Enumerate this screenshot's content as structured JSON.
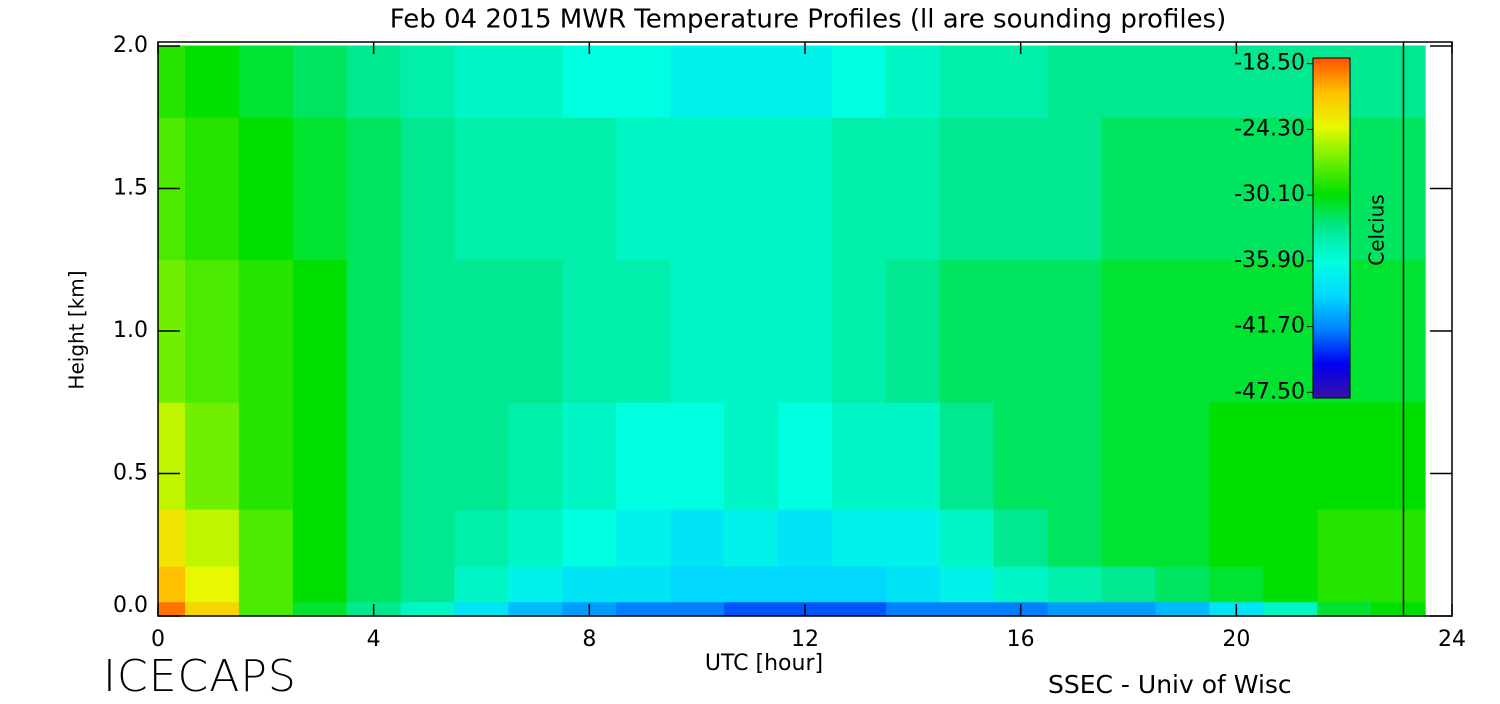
{
  "chart_data": {
    "type": "heatmap",
    "title": "Feb 04 2015 MWR Temperature Profiles (ll are sounding profiles)",
    "x_label": "UTC [hour]",
    "y_label": "Height [km]",
    "colorbar_label": "Celcius",
    "footer_left": "ICECAPS",
    "footer_right": "SSEC - Univ of Wisc",
    "x": [
      0,
      1,
      2,
      3,
      4,
      5,
      6,
      7,
      8,
      9,
      10,
      11,
      12,
      13,
      14,
      15,
      16,
      17,
      18,
      19,
      20,
      21,
      22,
      23
    ],
    "y": [
      0,
      0.1,
      0.25,
      0.5,
      1.0,
      1.5,
      2.0
    ],
    "z": [
      [
        -19,
        -22,
        -28,
        -31,
        -33,
        -35,
        -38,
        -40,
        -41,
        -42,
        -42,
        -43,
        -43,
        -43,
        -42,
        -42,
        -42,
        -41,
        -41,
        -40,
        -38,
        -35,
        -31,
        -30
      ],
      [
        -21,
        -24,
        -28,
        -30,
        -32,
        -33,
        -35,
        -37,
        -38,
        -38,
        -39,
        -39,
        -39,
        -39,
        -38,
        -37,
        -35,
        -34,
        -33,
        -32,
        -31,
        -30,
        -29,
        -29
      ],
      [
        -23,
        -25,
        -28,
        -30,
        -32,
        -33,
        -34,
        -35,
        -36,
        -37,
        -38,
        -37,
        -38,
        -37,
        -37,
        -35,
        -33,
        -32,
        -31,
        -31,
        -30,
        -30,
        -29,
        -29
      ],
      [
        -25,
        -27,
        -29,
        -30,
        -32,
        -33,
        -33,
        -34,
        -35,
        -36,
        -36,
        -35,
        -36,
        -35,
        -35,
        -33,
        -32,
        -32,
        -31,
        -31,
        -30,
        -30,
        -30,
        -30
      ],
      [
        -27,
        -28,
        -29,
        -30,
        -32,
        -33,
        -33,
        -33,
        -34,
        -34,
        -35,
        -35,
        -35,
        -34,
        -33,
        -32,
        -32,
        -32,
        -31,
        -31,
        -31,
        -31,
        -31,
        -31
      ],
      [
        -28,
        -29,
        -30,
        -31,
        -32,
        -33,
        -34,
        -34,
        -34,
        -35,
        -35,
        -35,
        -35,
        -34,
        -34,
        -33,
        -33,
        -33,
        -32,
        -32,
        -32,
        -32,
        -32,
        -32
      ],
      [
        -29,
        -30,
        -31,
        -32,
        -33,
        -34,
        -35,
        -35,
        -36,
        -36,
        -37,
        -37,
        -37,
        -36,
        -35,
        -34,
        -34,
        -33,
        -33,
        -33,
        -33,
        -33,
        -33,
        -33
      ]
    ],
    "soundings": [
      23.1
    ],
    "xlim": [
      0,
      24
    ],
    "xticks": [
      0,
      4,
      8,
      12,
      16,
      20,
      24
    ],
    "ylim": [
      0,
      2.0
    ],
    "yticks": [
      {
        "value": 0,
        "label": "0.0"
      },
      0.5,
      {
        "value": 1,
        "label": "1.0"
      },
      1.5,
      {
        "value": 2,
        "label": "2.0"
      }
    ],
    "clim": [
      -48,
      -18
    ],
    "cticks": [
      {
        "value": -18.5,
        "label": "-18.50"
      },
      {
        "value": -24.3,
        "label": "-24.30"
      },
      {
        "value": -30.1,
        "label": "-30.10"
      },
      {
        "value": -35.9,
        "label": "-35.90"
      },
      {
        "value": -41.7,
        "label": "-41.70"
      },
      {
        "value": -47.5,
        "label": "-47.50"
      }
    ],
    "colormap": [
      "#3a10a8",
      "#0000f0",
      "#0080ff",
      "#00d8ff",
      "#00ffe0",
      "#00e890",
      "#00e000",
      "#70f000",
      "#e8f800",
      "#ffc000",
      "#ff5000"
    ]
  }
}
